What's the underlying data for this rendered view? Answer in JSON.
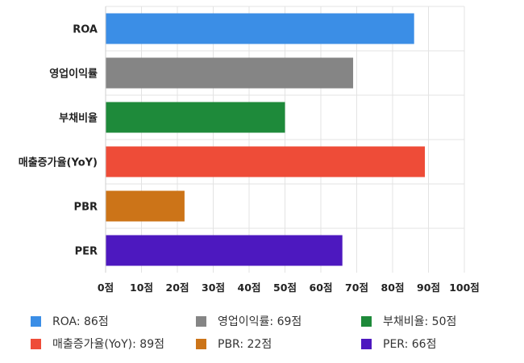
{
  "chart_data": {
    "type": "bar",
    "orientation": "horizontal",
    "categories": [
      "ROA",
      "영업이익률",
      "부채비율",
      "매출증가율(YoY)",
      "PBR",
      "PER"
    ],
    "values": [
      86,
      69,
      50,
      89,
      22,
      66
    ],
    "colors": [
      "#3b8ee6",
      "#858585",
      "#1e8a3a",
      "#ee4c38",
      "#cc7418",
      "#4d18bf"
    ],
    "xlim": [
      0,
      100
    ],
    "xticks": [
      "0점",
      "10점",
      "20점",
      "30점",
      "40점",
      "50점",
      "60점",
      "70점",
      "80점",
      "90점",
      "100점"
    ],
    "grid": true,
    "legend": [
      {
        "label": "ROA: 86점",
        "color": "#3b8ee6"
      },
      {
        "label": "영업이익률: 69점",
        "color": "#858585"
      },
      {
        "label": "부채비율: 50점",
        "color": "#1e8a3a"
      },
      {
        "label": "매출증가율(YoY): 89점",
        "color": "#ee4c38"
      },
      {
        "label": "PBR: 22점",
        "color": "#cc7418"
      },
      {
        "label": "PER: 66점",
        "color": "#4d18bf"
      }
    ],
    "legend_position": "bottom"
  }
}
